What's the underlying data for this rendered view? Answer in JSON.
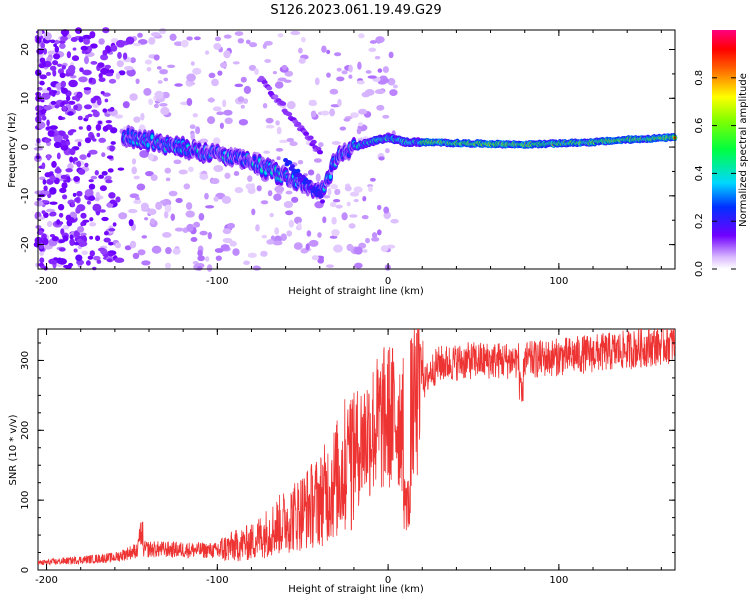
{
  "title": "S126.2023.061.19.49.G29",
  "chart_data": [
    {
      "type": "heatmap",
      "title": "S126.2023.061.19.49.G29",
      "xlabel": "Height of straight line (km)",
      "ylabel": "Frequency (Hz)",
      "xlim": [
        -205,
        168
      ],
      "ylim": [
        -25,
        24
      ],
      "xticks": [
        "-200",
        "-100",
        "0",
        "100"
      ],
      "yticks": [
        "-20",
        "-10",
        "0",
        "10",
        "20"
      ],
      "colorbar": {
        "label": "Normalized spectral amplitude",
        "range": [
          0,
          1
        ],
        "ticks": [
          "0.0",
          "0.2",
          "0.4",
          "0.6",
          "0.8"
        ]
      },
      "ridge": {
        "x": [
          -150,
          -120,
          -100,
          -80,
          -60,
          -45,
          -40,
          -30,
          -20,
          -10,
          0,
          10,
          20,
          40,
          80,
          120,
          140,
          168
        ],
        "y": [
          2,
          0,
          -1.5,
          -3,
          -6,
          -8,
          -10,
          -2,
          0,
          1,
          2,
          1,
          1,
          0.8,
          0.5,
          1,
          1.5,
          2
        ]
      }
    },
    {
      "type": "line",
      "xlabel": "Height of straight line (km)",
      "ylabel": "SNR (10 * v/v)",
      "xlim": [
        -205,
        168
      ],
      "ylim": [
        0,
        345
      ],
      "xticks": [
        "-200",
        "-100",
        "0",
        "100"
      ],
      "yticks": [
        "0",
        "100",
        "200",
        "300"
      ],
      "trend": {
        "x": [
          -205,
          -160,
          -145,
          -100,
          -80,
          -60,
          -40,
          -30,
          -20,
          -10,
          0,
          10,
          15,
          20,
          25,
          30,
          50,
          80,
          100,
          120,
          140,
          168
        ],
        "y": [
          10,
          18,
          30,
          28,
          40,
          70,
          100,
          130,
          170,
          200,
          220,
          215,
          230,
          260,
          285,
          295,
          300,
          300,
          305,
          310,
          315,
          325
        ]
      },
      "series": [
        {
          "color": "#ee3333"
        }
      ]
    }
  ]
}
